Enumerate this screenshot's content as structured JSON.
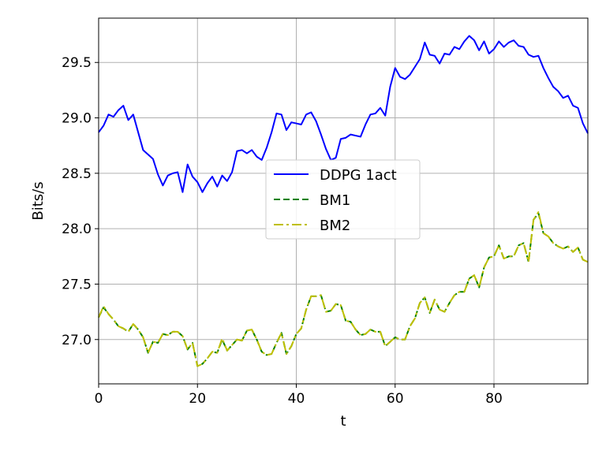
{
  "chart_data": {
    "type": "line",
    "title": "",
    "xlabel": "t",
    "ylabel": "Bits/s",
    "xlim": [
      0,
      99
    ],
    "ylim": [
      26.6,
      29.9
    ],
    "xticks": [
      0,
      20,
      40,
      60,
      80
    ],
    "yticks": [
      27.0,
      27.5,
      28.0,
      28.5,
      29.0,
      29.5
    ],
    "xtick_labels": [
      "0",
      "20",
      "40",
      "60",
      "80"
    ],
    "ytick_labels": [
      "27.0",
      "27.5",
      "28.0",
      "28.5",
      "29.0",
      "29.5"
    ],
    "grid": true,
    "legend_position": "center",
    "series": [
      {
        "name": "DDPG 1act",
        "color": "#0000ff",
        "style": "solid",
        "x": [
          0,
          1,
          2,
          3,
          4,
          5,
          6,
          7,
          8,
          9,
          10,
          11,
          12,
          13,
          14,
          15,
          16,
          17,
          18,
          19,
          20,
          21,
          22,
          23,
          24,
          25,
          26,
          27,
          28,
          29,
          30,
          31,
          32,
          33,
          34,
          35,
          36,
          37,
          38,
          39,
          40,
          41,
          42,
          43,
          44,
          45,
          46,
          47,
          48,
          49,
          50,
          51,
          52,
          53,
          54,
          55,
          56,
          57,
          58,
          59,
          60,
          61,
          62,
          63,
          64,
          65,
          66,
          67,
          68,
          69,
          70,
          71,
          72,
          73,
          74,
          75,
          76,
          77,
          78,
          79,
          80,
          81,
          82,
          83,
          84,
          85,
          86,
          87,
          88,
          89,
          90,
          91,
          92,
          93,
          94,
          95,
          96,
          97,
          98,
          99
        ],
        "values": [
          28.87,
          28.93,
          29.03,
          29.01,
          29.07,
          29.11,
          28.98,
          29.03,
          28.87,
          28.71,
          28.67,
          28.63,
          28.49,
          28.39,
          28.48,
          28.5,
          28.51,
          28.33,
          28.58,
          28.47,
          28.42,
          28.33,
          28.41,
          28.47,
          28.38,
          28.48,
          28.43,
          28.51,
          28.7,
          28.71,
          28.68,
          28.71,
          28.65,
          28.62,
          28.73,
          28.87,
          29.04,
          29.03,
          28.89,
          28.96,
          28.95,
          28.94,
          29.03,
          29.05,
          28.97,
          28.85,
          28.72,
          28.62,
          28.64,
          28.81,
          28.82,
          28.85,
          28.84,
          28.83,
          28.94,
          29.03,
          29.04,
          29.09,
          29.02,
          29.28,
          29.45,
          29.37,
          29.35,
          29.39,
          29.46,
          29.53,
          29.68,
          29.57,
          29.56,
          29.49,
          29.58,
          29.57,
          29.64,
          29.62,
          29.69,
          29.74,
          29.7,
          29.61,
          29.69,
          29.58,
          29.62,
          29.69,
          29.64,
          29.68,
          29.7,
          29.65,
          29.64,
          29.57,
          29.55,
          29.56,
          29.45,
          29.36,
          29.28,
          29.24,
          29.18,
          29.2,
          29.11,
          29.09,
          28.95,
          28.86
        ]
      },
      {
        "name": "BM1",
        "color": "#008000",
        "style": "dashed",
        "x": [
          0,
          1,
          2,
          3,
          4,
          5,
          6,
          7,
          8,
          9,
          10,
          11,
          12,
          13,
          14,
          15,
          16,
          17,
          18,
          19,
          20,
          21,
          22,
          23,
          24,
          25,
          26,
          27,
          28,
          29,
          30,
          31,
          32,
          33,
          34,
          35,
          36,
          37,
          38,
          39,
          40,
          41,
          42,
          43,
          44,
          45,
          46,
          47,
          48,
          49,
          50,
          51,
          52,
          53,
          54,
          55,
          56,
          57,
          58,
          59,
          60,
          61,
          62,
          63,
          64,
          65,
          66,
          67,
          68,
          69,
          70,
          71,
          72,
          73,
          74,
          75,
          76,
          77,
          78,
          79,
          80,
          81,
          82,
          83,
          84,
          85,
          86,
          87,
          88,
          89,
          90,
          91,
          92,
          93,
          94,
          95,
          96,
          97,
          98,
          99
        ],
        "values": [
          27.2,
          27.29,
          27.23,
          27.18,
          27.12,
          27.1,
          27.07,
          27.14,
          27.09,
          27.02,
          26.88,
          26.98,
          26.97,
          27.05,
          27.04,
          27.07,
          27.07,
          27.03,
          26.91,
          26.97,
          26.76,
          26.78,
          26.83,
          26.89,
          26.88,
          27.0,
          26.9,
          26.95,
          27.0,
          26.99,
          27.08,
          27.09,
          27.0,
          26.89,
          26.86,
          26.87,
          26.97,
          27.06,
          26.87,
          26.94,
          27.05,
          27.1,
          27.27,
          27.39,
          27.39,
          27.4,
          27.25,
          27.26,
          27.32,
          27.31,
          27.17,
          27.16,
          27.09,
          27.04,
          27.05,
          27.09,
          27.07,
          27.07,
          26.94,
          26.98,
          27.02,
          27.0,
          27.0,
          27.12,
          27.19,
          27.33,
          27.38,
          27.24,
          27.36,
          27.27,
          27.25,
          27.33,
          27.4,
          27.43,
          27.43,
          27.55,
          27.58,
          27.47,
          27.65,
          27.74,
          27.75,
          27.85,
          27.73,
          27.75,
          27.75,
          27.85,
          27.87,
          27.7,
          28.08,
          28.14,
          27.96,
          27.93,
          27.87,
          27.84,
          27.82,
          27.84,
          27.79,
          27.83,
          27.72,
          27.7
        ]
      },
      {
        "name": "BM2",
        "color": "#bfbf00",
        "style": "dashdot",
        "x": [
          0,
          1,
          2,
          3,
          4,
          5,
          6,
          7,
          8,
          9,
          10,
          11,
          12,
          13,
          14,
          15,
          16,
          17,
          18,
          19,
          20,
          21,
          22,
          23,
          24,
          25,
          26,
          27,
          28,
          29,
          30,
          31,
          32,
          33,
          34,
          35,
          36,
          37,
          38,
          39,
          40,
          41,
          42,
          43,
          44,
          45,
          46,
          47,
          48,
          49,
          50,
          51,
          52,
          53,
          54,
          55,
          56,
          57,
          58,
          59,
          60,
          61,
          62,
          63,
          64,
          65,
          66,
          67,
          68,
          69,
          70,
          71,
          72,
          73,
          74,
          75,
          76,
          77,
          78,
          79,
          80,
          81,
          82,
          83,
          84,
          85,
          86,
          87,
          88,
          89,
          90,
          91,
          92,
          93,
          94,
          95,
          96,
          97,
          98,
          99
        ],
        "values": [
          27.2,
          27.3,
          27.23,
          27.18,
          27.12,
          27.1,
          27.07,
          27.14,
          27.09,
          27.02,
          26.88,
          26.98,
          26.97,
          27.05,
          27.04,
          27.07,
          27.07,
          27.03,
          26.91,
          26.97,
          26.76,
          26.78,
          26.83,
          26.89,
          26.88,
          27.01,
          26.9,
          26.95,
          27.0,
          26.99,
          27.08,
          27.09,
          27.0,
          26.89,
          26.86,
          26.87,
          26.97,
          27.06,
          26.87,
          26.94,
          27.05,
          27.1,
          27.27,
          27.39,
          27.39,
          27.4,
          27.25,
          27.26,
          27.32,
          27.31,
          27.17,
          27.16,
          27.09,
          27.04,
          27.05,
          27.09,
          27.07,
          27.07,
          26.94,
          26.98,
          27.02,
          27.0,
          27.0,
          27.12,
          27.19,
          27.33,
          27.38,
          27.24,
          27.36,
          27.27,
          27.25,
          27.33,
          27.4,
          27.43,
          27.43,
          27.55,
          27.58,
          27.47,
          27.65,
          27.74,
          27.75,
          27.85,
          27.73,
          27.75,
          27.75,
          27.85,
          27.87,
          27.7,
          28.08,
          28.15,
          27.96,
          27.93,
          27.87,
          27.84,
          27.82,
          27.84,
          27.79,
          27.83,
          27.72,
          27.7
        ]
      }
    ]
  }
}
